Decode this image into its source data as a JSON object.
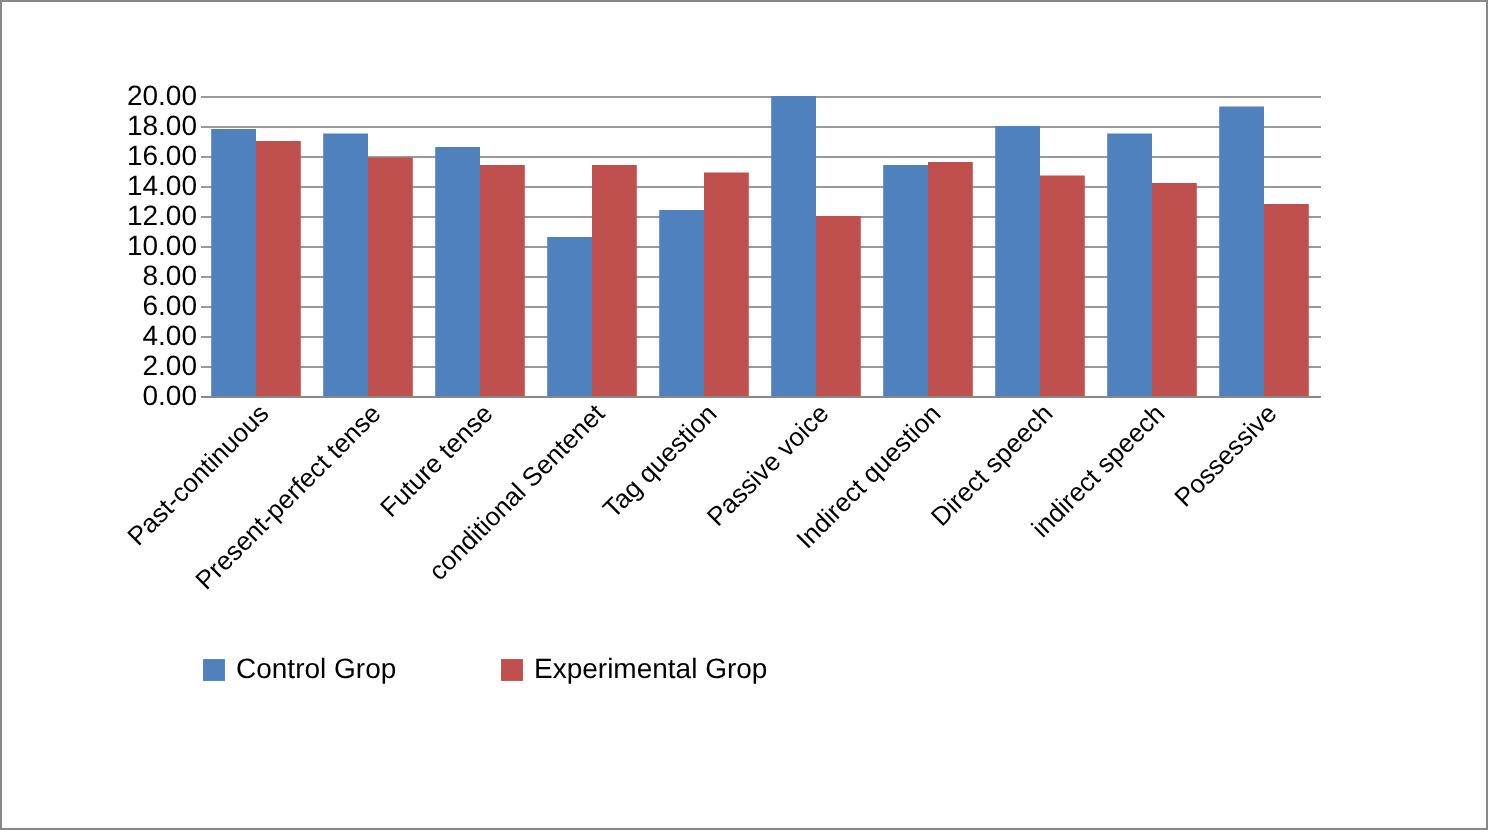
{
  "chart_data": {
    "type": "bar",
    "categories": [
      "Past-continuous",
      "Present-perfect tense",
      "Future tense",
      "conditional Sentenet",
      "Tag question",
      "Passive voice",
      "Indirect question",
      "Direct speech",
      "indirect speech",
      "Possessive"
    ],
    "series": [
      {
        "name": "Control Grop",
        "color": "#4f81bd",
        "values": [
          17.8,
          17.5,
          16.6,
          10.6,
          12.4,
          20.0,
          15.4,
          18.0,
          17.5,
          19.3
        ]
      },
      {
        "name": "Experimental Grop",
        "color": "#c0504d",
        "values": [
          17.0,
          15.9,
          15.4,
          15.4,
          14.9,
          12.0,
          15.6,
          14.7,
          14.2,
          12.8
        ]
      }
    ],
    "ylim": [
      0,
      20
    ],
    "yticks": [
      {
        "value": 0,
        "label": "0.00"
      },
      {
        "value": 2,
        "label": "2.00"
      },
      {
        "value": 4,
        "label": "4.00"
      },
      {
        "value": 6,
        "label": "6.00"
      },
      {
        "value": 8,
        "label": "8.00"
      },
      {
        "value": 10,
        "label": "10.00"
      },
      {
        "value": 12,
        "label": "12.00"
      },
      {
        "value": 14,
        "label": "14.00"
      },
      {
        "value": 16,
        "label": "16.00"
      },
      {
        "value": 18,
        "label": "18.00"
      },
      {
        "value": 20,
        "label": "20.00"
      }
    ],
    "grid": "y",
    "legend": "bottom"
  }
}
